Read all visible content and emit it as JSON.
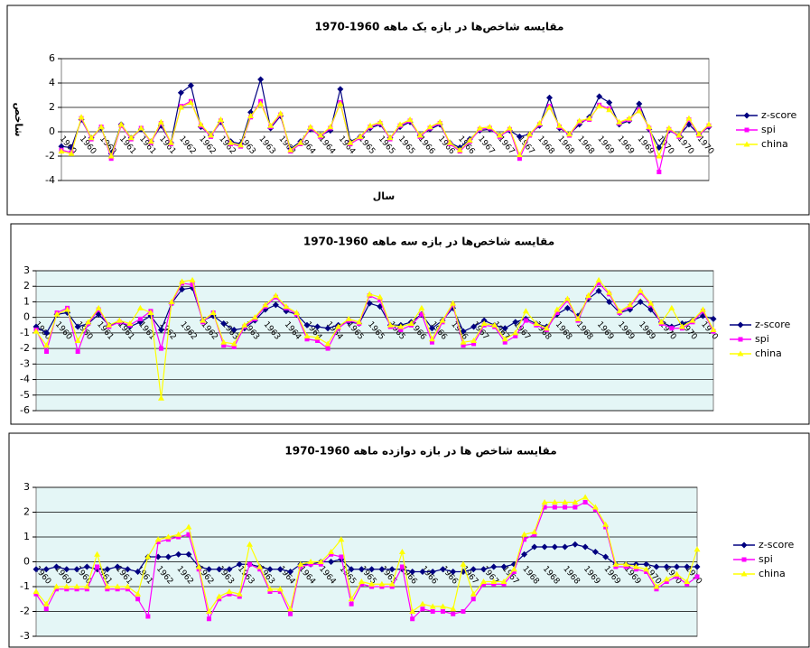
{
  "chart_data": [
    {
      "type": "line",
      "title": "مقایسه شاخص‌ها در بازه یک ماهه  1960-1970",
      "x_label": "سال",
      "y_label": "شاخص",
      "categories": [
        "1960",
        null,
        "1960",
        null,
        "1960",
        null,
        "1961",
        null,
        "1961",
        null,
        "1961",
        null,
        "1962",
        null,
        "1962",
        null,
        "1962",
        null,
        "1963",
        null,
        "1963",
        null,
        "1963",
        null,
        "1964",
        null,
        "1964",
        null,
        "1964",
        null,
        "1965",
        null,
        "1965",
        null,
        "1965",
        null,
        "1966",
        null,
        "1966",
        null,
        "1966",
        null,
        "1967",
        null,
        "1967",
        null,
        "1967",
        null,
        "1968",
        null,
        "1968",
        null,
        "1968",
        null,
        "1969",
        null,
        "1969",
        null,
        "1969",
        null,
        "1970",
        null,
        "1970",
        null,
        "1970",
        null
      ],
      "series": [
        {
          "name": "z-score",
          "color": "#000080",
          "marker": "diamond",
          "values": [
            -1.2,
            -1.3,
            1.0,
            -0.5,
            0.3,
            -1.8,
            0.6,
            -0.5,
            0.2,
            -0.8,
            0.5,
            -0.9,
            3.2,
            3.8,
            0.4,
            -0.3,
            0.8,
            -0.8,
            -1.0,
            1.6,
            4.3,
            0.3,
            1.3,
            -1.4,
            -0.8,
            0.2,
            -0.3,
            0.1,
            3.5,
            -0.8,
            -0.4,
            0.3,
            0.6,
            -0.5,
            0.4,
            0.8,
            -0.3,
            0.2,
            0.6,
            -0.9,
            -1.3,
            -0.6,
            0.1,
            0.2,
            -0.3,
            0.1,
            -0.4,
            -0.2,
            0.5,
            2.8,
            0.3,
            -0.2,
            0.6,
            1.2,
            2.9,
            2.4,
            0.6,
            0.9,
            2.3,
            0.2,
            -1.3,
            0.1,
            -0.3,
            0.6,
            -0.2,
            0.4
          ]
        },
        {
          "name": "spi",
          "color": "#ff00ff",
          "marker": "square",
          "values": [
            -1.5,
            -1.7,
            1.1,
            -0.6,
            0.4,
            -2.2,
            0.5,
            -0.6,
            0.3,
            -0.9,
            0.7,
            -1.0,
            2.1,
            2.5,
            0.5,
            -0.4,
            0.9,
            -1.0,
            -1.2,
            1.2,
            2.5,
            0.4,
            1.4,
            -1.6,
            -1.0,
            0.3,
            -0.4,
            0.3,
            2.4,
            -1.0,
            -0.5,
            0.4,
            0.7,
            -0.6,
            0.5,
            0.9,
            -0.4,
            0.3,
            0.7,
            -1.0,
            -1.6,
            -0.8,
            0.2,
            0.3,
            -0.4,
            0.2,
            -2.2,
            -0.3,
            0.6,
            2.1,
            0.4,
            -0.3,
            0.8,
            1.0,
            2.2,
            1.9,
            0.7,
            1.0,
            1.8,
            0.3,
            -3.3,
            0.2,
            -0.4,
            1.0,
            -0.3,
            0.5
          ]
        },
        {
          "name": "china",
          "color": "#ffff00",
          "marker": "triangle",
          "values": [
            -1.6,
            -1.8,
            1.2,
            -0.5,
            0.4,
            -2.0,
            0.6,
            -0.5,
            0.3,
            -0.8,
            0.8,
            -0.9,
            2.0,
            2.4,
            0.6,
            -0.3,
            1.0,
            -0.9,
            -1.1,
            1.3,
            2.3,
            0.5,
            1.5,
            -1.5,
            -0.9,
            0.4,
            -0.3,
            0.4,
            2.3,
            -0.9,
            -0.4,
            0.5,
            0.8,
            -0.5,
            0.6,
            1.0,
            -0.3,
            0.4,
            0.8,
            -0.9,
            -1.5,
            -0.7,
            0.3,
            0.4,
            -0.3,
            0.3,
            -1.9,
            -0.2,
            0.7,
            2.0,
            0.5,
            -0.2,
            0.9,
            1.1,
            2.1,
            1.8,
            0.8,
            1.1,
            1.7,
            0.4,
            -2.0,
            0.3,
            -0.3,
            1.1,
            -0.2,
            0.6
          ]
        }
      ],
      "ylim": [
        -4,
        6
      ],
      "yticks": [
        -4,
        -2,
        0,
        2,
        4,
        6
      ],
      "grid": true,
      "legend": "right",
      "plot_color": "#ffffff"
    },
    {
      "type": "line",
      "title": "مقایسه شاخص‌ها در بازه سه ماهه 1960-1970",
      "categories": [
        "1960",
        null,
        "1960",
        null,
        "1960",
        null,
        "1961",
        null,
        "1961",
        null,
        "1961",
        null,
        "1962",
        null,
        "1962",
        null,
        "1962",
        null,
        "1963",
        null,
        "1963",
        null,
        "1963",
        null,
        "1964",
        null,
        "1964",
        null,
        "1964",
        null,
        "1965",
        null,
        "1965",
        null,
        "1965",
        null,
        "1966",
        null,
        "1966",
        null,
        "1966",
        null,
        "1967",
        null,
        "1967",
        null,
        "1967",
        null,
        "1968",
        null,
        "1968",
        null,
        "1968",
        null,
        "1969",
        null,
        "1969",
        null,
        "1969",
        null,
        "1970",
        null,
        "1970",
        null,
        "1970",
        null
      ],
      "series": [
        {
          "name": "z-score",
          "color": "#000080",
          "marker": "diamond",
          "values": [
            -0.6,
            -1.0,
            0.2,
            0.3,
            -0.6,
            -0.4,
            0.2,
            -0.5,
            -0.3,
            -0.6,
            -0.3,
            0.1,
            -0.8,
            0.9,
            1.8,
            1.9,
            -0.2,
            0.1,
            -0.4,
            -0.8,
            -0.7,
            -0.2,
            0.5,
            0.8,
            0.4,
            0.2,
            -0.5,
            -0.6,
            -0.7,
            -0.5,
            -0.3,
            -0.4,
            0.9,
            0.7,
            -0.5,
            -0.5,
            -0.3,
            0.2,
            -0.7,
            -0.2,
            0.6,
            -0.9,
            -0.6,
            -0.2,
            -0.5,
            -0.7,
            -0.3,
            -0.1,
            -0.4,
            -0.6,
            0.2,
            0.6,
            0.1,
            1.2,
            1.7,
            1.0,
            0.3,
            0.5,
            1.0,
            0.5,
            -0.3,
            -0.6,
            -0.4,
            -0.2,
            0.1,
            -0.1
          ]
        },
        {
          "name": "spi",
          "color": "#ff00ff",
          "marker": "square",
          "values": [
            -0.8,
            -2.2,
            0.3,
            0.6,
            -2.2,
            -0.4,
            0.5,
            -0.6,
            -0.3,
            -0.5,
            -0.1,
            0.4,
            -2.0,
            0.9,
            2.2,
            2.1,
            -0.3,
            0.3,
            -1.8,
            -1.9,
            -0.6,
            -0.1,
            0.7,
            1.3,
            0.6,
            0.2,
            -1.4,
            -1.5,
            -2.0,
            -0.7,
            -0.2,
            -0.4,
            1.4,
            1.1,
            -0.6,
            -0.8,
            -0.5,
            0.2,
            -1.6,
            -0.3,
            0.8,
            -1.8,
            -1.7,
            -0.5,
            -0.6,
            -1.6,
            -1.2,
            -0.2,
            -0.5,
            -0.8,
            0.3,
            1.1,
            -0.2,
            1.3,
            2.2,
            1.5,
            0.3,
            0.7,
            1.6,
            0.8,
            -0.4,
            -0.7,
            -0.7,
            -0.3,
            0.4,
            -0.9
          ]
        },
        {
          "name": "china",
          "color": "#ffff00",
          "marker": "triangle",
          "values": [
            -0.9,
            -1.8,
            0.2,
            0.5,
            -1.5,
            -0.3,
            0.6,
            -0.5,
            -0.2,
            -0.4,
            0.6,
            0.3,
            -5.2,
            1.0,
            2.3,
            2.4,
            -0.2,
            0.3,
            -1.6,
            -1.7,
            -0.5,
            0.0,
            0.8,
            1.4,
            0.7,
            0.3,
            -1.2,
            -1.3,
            -1.7,
            -0.6,
            -0.1,
            -0.3,
            1.5,
            1.3,
            -0.5,
            -0.6,
            -0.4,
            0.6,
            -1.4,
            -0.2,
            0.9,
            -1.6,
            -1.5,
            -0.4,
            -0.5,
            -1.4,
            -1.0,
            0.4,
            -0.4,
            -0.7,
            0.5,
            1.2,
            -0.1,
            1.4,
            2.4,
            1.6,
            0.4,
            0.8,
            1.7,
            0.9,
            -0.3,
            0.6,
            -0.6,
            -0.2,
            0.5,
            -0.8
          ]
        }
      ],
      "ylim": [
        -6,
        3
      ],
      "yticks": [
        -6,
        -5,
        -4,
        -3,
        -2,
        -1,
        0,
        1,
        2,
        3
      ],
      "grid": true,
      "legend": "right",
      "plot_color": "#e4f6f6"
    },
    {
      "type": "line",
      "title": "مقایسه شاخص ها در بازه دوازده ماهه 1960-1970",
      "categories": [
        "1960",
        null,
        "1960",
        null,
        "1960",
        null,
        "1961",
        null,
        "1961",
        null,
        "1961",
        null,
        "1962",
        null,
        "1962",
        null,
        "1962",
        null,
        "1963",
        null,
        "1963",
        null,
        "1963",
        null,
        "1964",
        null,
        "1964",
        null,
        "1964",
        null,
        "1965",
        null,
        "1965",
        null,
        "1965",
        null,
        "1966",
        null,
        "1966",
        null,
        "1966",
        null,
        "1967",
        null,
        "1967",
        null,
        "1967",
        null,
        "1968",
        null,
        "1968",
        null,
        "1968",
        null,
        "1969",
        null,
        "1969",
        null,
        "1969",
        null,
        "1970",
        null,
        "1970",
        null,
        "1970",
        null
      ],
      "series": [
        {
          "name": "z-score",
          "color": "#000080",
          "marker": "diamond",
          "values": [
            -0.3,
            -0.3,
            -0.2,
            -0.3,
            -0.3,
            -0.2,
            -0.3,
            -0.3,
            -0.2,
            -0.3,
            -0.4,
            0.2,
            0.2,
            0.2,
            0.3,
            0.3,
            -0.2,
            -0.3,
            -0.3,
            -0.3,
            -0.1,
            -0.1,
            -0.2,
            -0.3,
            -0.3,
            -0.4,
            -0.1,
            -0.1,
            0.0,
            0.0,
            0.1,
            -0.3,
            -0.3,
            -0.3,
            -0.3,
            -0.3,
            -0.3,
            -0.4,
            -0.4,
            -0.4,
            -0.3,
            -0.4,
            -0.4,
            -0.3,
            -0.3,
            -0.2,
            -0.2,
            -0.1,
            0.3,
            0.6,
            0.6,
            0.6,
            0.6,
            0.7,
            0.6,
            0.4,
            0.2,
            -0.1,
            -0.1,
            -0.1,
            -0.1,
            -0.2,
            -0.2,
            -0.2,
            -0.2,
            -0.2
          ]
        },
        {
          "name": "spi",
          "color": "#ff00ff",
          "marker": "square",
          "values": [
            -1.3,
            -1.9,
            -1.1,
            -1.1,
            -1.1,
            -1.1,
            -0.2,
            -1.1,
            -1.1,
            -1.1,
            -1.5,
            -2.2,
            0.8,
            0.9,
            1.0,
            1.1,
            -0.3,
            -2.3,
            -1.5,
            -1.3,
            -1.4,
            -0.1,
            -0.3,
            -1.2,
            -1.2,
            -2.1,
            -0.2,
            -0.1,
            -0.1,
            0.3,
            0.2,
            -1.7,
            -0.9,
            -1.0,
            -1.0,
            -1.0,
            -0.2,
            -2.3,
            -1.9,
            -2.0,
            -2.0,
            -2.1,
            -2.0,
            -1.5,
            -0.9,
            -0.9,
            -0.9,
            -0.4,
            0.9,
            1.1,
            2.2,
            2.2,
            2.2,
            2.2,
            2.4,
            2.1,
            1.4,
            -0.2,
            -0.2,
            -0.3,
            -0.4,
            -1.1,
            -0.8,
            -0.6,
            -0.9,
            -0.6
          ]
        },
        {
          "name": "china",
          "color": "#ffff00",
          "marker": "triangle",
          "values": [
            -1.2,
            -1.7,
            -1.0,
            -1.0,
            -1.0,
            -1.0,
            0.3,
            -1.0,
            -1.0,
            -1.0,
            -1.3,
            0.2,
            0.9,
            1.0,
            1.1,
            1.4,
            -0.2,
            -2.0,
            -1.4,
            -1.2,
            -1.3,
            0.7,
            -0.2,
            -1.1,
            -1.1,
            -1.9,
            -0.1,
            0.0,
            0.0,
            0.4,
            0.9,
            -1.5,
            -0.8,
            -0.9,
            -0.9,
            -0.9,
            0.4,
            -2.0,
            -1.7,
            -1.8,
            -1.8,
            -1.9,
            -0.1,
            -1.3,
            -0.8,
            -0.8,
            -0.8,
            -0.3,
            1.1,
            1.2,
            2.4,
            2.4,
            2.4,
            2.4,
            2.6,
            2.2,
            1.5,
            -0.1,
            -0.1,
            -0.2,
            -0.3,
            -1.0,
            -0.7,
            -0.5,
            -0.8,
            0.5
          ]
        }
      ],
      "ylim": [
        -3,
        3
      ],
      "yticks": [
        -3,
        -2,
        -1,
        0,
        1,
        2,
        3
      ],
      "grid": true,
      "legend": "right",
      "plot_color": "#e4f6f6"
    }
  ]
}
